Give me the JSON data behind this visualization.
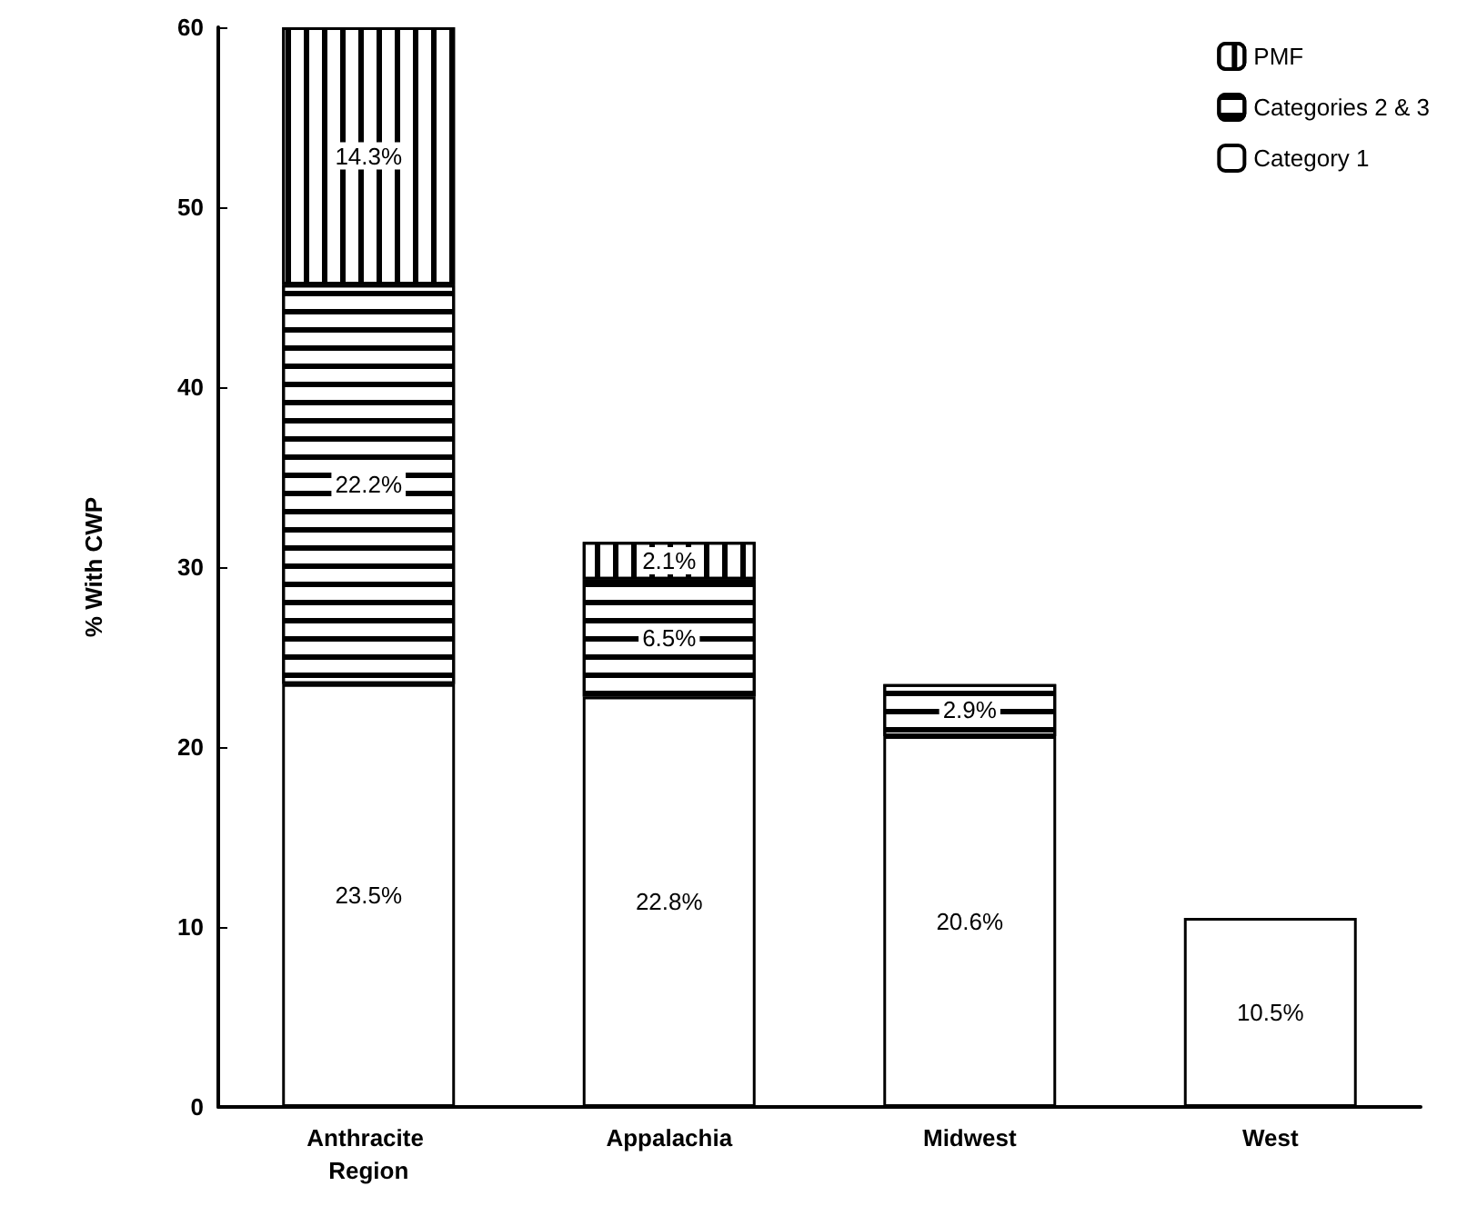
{
  "chart_data": {
    "type": "bar",
    "stacked": true,
    "ylabel": "% With CWP",
    "categories": [
      "Anthracite Region",
      "Appalachia",
      "Midwest",
      "West"
    ],
    "series": [
      {
        "name": "Category 1",
        "color": "#ffffff",
        "values": [
          23.5,
          22.8,
          20.6,
          10.5
        ],
        "value_labels": [
          "23.5%",
          "22.8%",
          "20.6%",
          "10.5%"
        ]
      },
      {
        "name": "Categories 2 & 3",
        "color": "#ffffff",
        "values": [
          22.2,
          6.5,
          2.9,
          null
        ],
        "value_labels": [
          "22.2%",
          "6.5%",
          "2.9%",
          null
        ]
      },
      {
        "name": "PMF",
        "color": "#ffffff",
        "values": [
          14.3,
          2.1,
          null,
          null
        ],
        "value_labels": [
          "14.3%",
          "2.1%",
          null,
          null
        ]
      }
    ],
    "ylim": [
      0,
      60
    ],
    "yticks": [
      0,
      10,
      20,
      30,
      40,
      50,
      60
    ],
    "grid": false,
    "legend": "top right"
  }
}
